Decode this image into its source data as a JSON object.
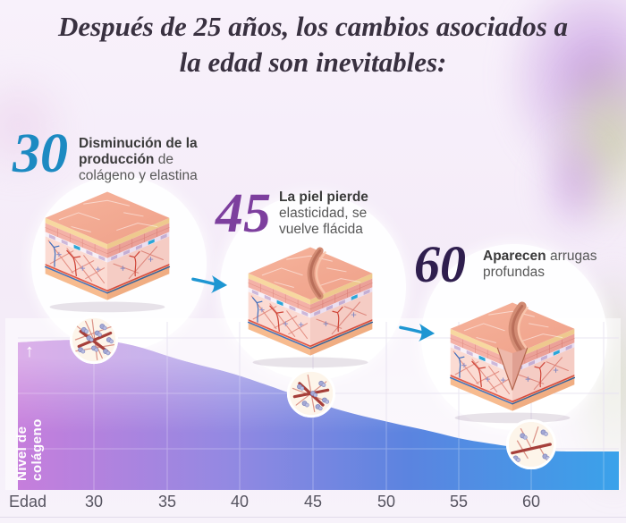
{
  "title": "Después de 25 años, los cambios asociados a la edad son inevitables:",
  "milestones": [
    {
      "age": "30",
      "highlight": "Disminución de la producción",
      "rest": " de colágeno y elastina",
      "accent_color": "#1c8ac2"
    },
    {
      "age": "45",
      "highlight": "La piel pierde",
      "rest": " elasticidad, se vuelve flácida",
      "accent_color": "#7d3f9e"
    },
    {
      "age": "60",
      "highlight": "Aparecen",
      "rest": " arrugas profundas",
      "accent_color": "#2f1e4e"
    }
  ],
  "chart": {
    "y_axis_label": "Nivel de colágeno",
    "x_axis_label": "Edad",
    "x_ticks": [
      "30",
      "35",
      "40",
      "45",
      "50",
      "55",
      "60"
    ],
    "arrow_up_glyph": "↑"
  },
  "chart_data": {
    "type": "area",
    "title": "Nivel de colágeno según la edad",
    "xlabel": "Edad",
    "ylabel": "Nivel de colágeno",
    "x": [
      30,
      35,
      40,
      45,
      50,
      55,
      60
    ],
    "values": [
      100,
      89,
      76,
      58,
      43,
      32,
      24
    ],
    "ylim": [
      0,
      100
    ],
    "grid": true,
    "legend": false,
    "area_gradient": [
      "#c67edc",
      "#9389e2",
      "#5b84e0",
      "#3aa2ea"
    ]
  },
  "colors": {
    "arrow_blue": "#1e96d2",
    "title_text": "#393140",
    "background": "#f4ebf8"
  }
}
